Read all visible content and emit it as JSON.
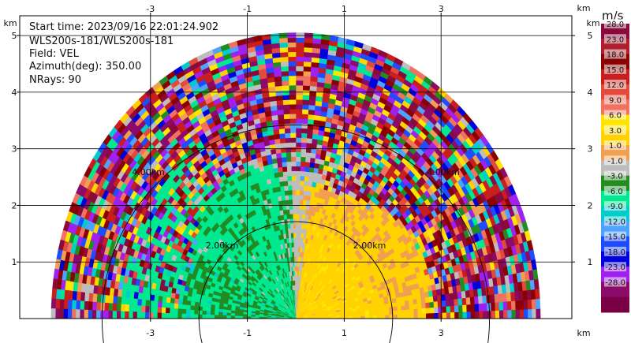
{
  "info": {
    "start_time": "Start time: 2023/09/16 22:01:24.902",
    "instrument": "WLS200s-181/WLS200s-181",
    "field": "Field: VEL",
    "azimuth": "Azimuth(deg): 350.00",
    "nrays": "NRays: 90"
  },
  "chart_data": {
    "type": "heatmap",
    "plot_type": "RHI range-height display",
    "xlim": [
      -5.7,
      5.7
    ],
    "ylim": [
      0,
      5.35
    ],
    "x_ticks": [
      "-3",
      "-1",
      "1",
      "3"
    ],
    "x_tick_values": [
      -3,
      -1,
      1,
      3
    ],
    "y_ticks": [
      "1",
      "2",
      "3",
      "4",
      "5"
    ],
    "y_tick_values": [
      1,
      2,
      3,
      4,
      5
    ],
    "x_unit": "km",
    "y_unit": "km",
    "grid": true,
    "max_range_km": 5.05,
    "range_rings": [
      {
        "radius_km": 2.0,
        "label": "2.00km"
      },
      {
        "radius_km": 4.0,
        "label": "4.00km"
      }
    ],
    "colorbar": {
      "unit": "m/s",
      "labels": [
        "28.0",
        "23.0",
        "18.0",
        "15.0",
        "12.0",
        "9.0",
        "6.0",
        "3.0",
        "1.0",
        "-1.0",
        "-3.0",
        "-6.0",
        "-9.0",
        "-12.0",
        "-15.0",
        "-18.0",
        "-23.0",
        "-28.0"
      ],
      "colors": [
        "#8b0a3c",
        "#b01d2e",
        "#8b0000",
        "#c81e1e",
        "#e24a3b",
        "#f27260",
        "#ffe600",
        "#ffd200",
        "#f0a050",
        "#bdbdbd",
        "#228b22",
        "#00e890",
        "#00cccc",
        "#4fa3ff",
        "#1e4cff",
        "#0000dd",
        "#a020f0",
        "#8b0a6a",
        "#7a0045"
      ]
    },
    "regions": [
      {
        "name": "near-range negative velocities (left)",
        "theta_deg": [
          90,
          178
        ],
        "range_km": [
          0,
          2.6
        ],
        "dominant": "-3.0 to -6.0"
      },
      {
        "name": "near-range positive velocities (right)",
        "theta_deg": [
          2,
          88
        ],
        "range_km": [
          0,
          2.6
        ],
        "dominant": "3.0 to 6.0"
      },
      {
        "name": "noisy far range",
        "theta_deg": [
          0,
          180
        ],
        "range_km": [
          2.6,
          5.05
        ],
        "dominant": "mixed"
      }
    ]
  }
}
